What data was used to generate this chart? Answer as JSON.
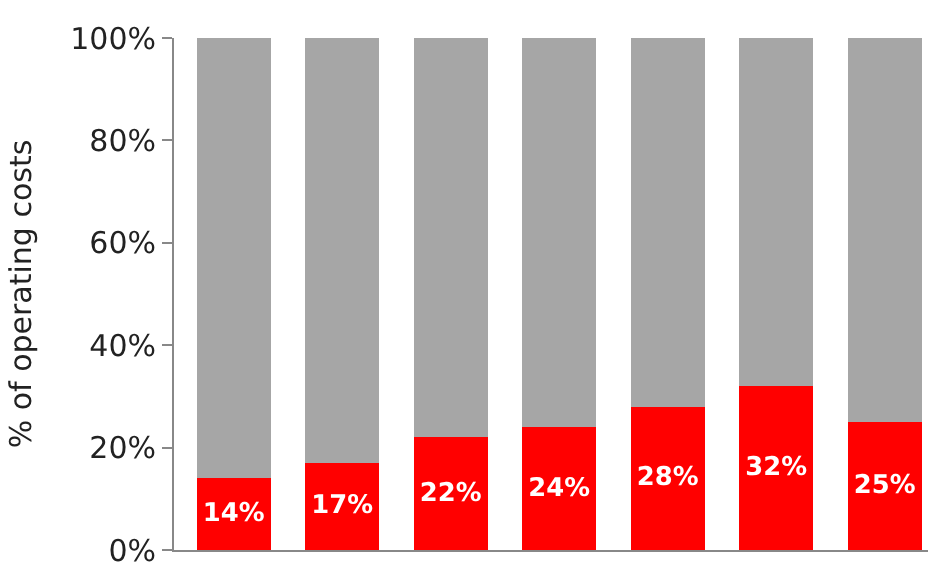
{
  "chart_data": {
    "type": "bar",
    "stacked": true,
    "ylabel": "% of operating costs",
    "categories": [
      null,
      null,
      null,
      null,
      null,
      null,
      null
    ],
    "series": [
      {
        "color": "#ff0000",
        "values": [
          14,
          17,
          22,
          24,
          28,
          32,
          25
        ],
        "value_labels": [
          "14%",
          "17%",
          "22%",
          "24%",
          "28%",
          "32%",
          "25%"
        ]
      },
      {
        "color": "#a6a6a6",
        "values": [
          86,
          83,
          78,
          76,
          72,
          68,
          75
        ]
      }
    ],
    "ylim": [
      0,
      100
    ],
    "yticks": [
      {
        "value": 0,
        "label": "0%"
      },
      {
        "value": 20,
        "label": "20%"
      },
      {
        "value": 40,
        "label": "40%"
      },
      {
        "value": 60,
        "label": "60%"
      },
      {
        "value": 80,
        "label": "80%"
      },
      {
        "value": 100,
        "label": "100%"
      }
    ],
    "tick_labels": "y"
  }
}
